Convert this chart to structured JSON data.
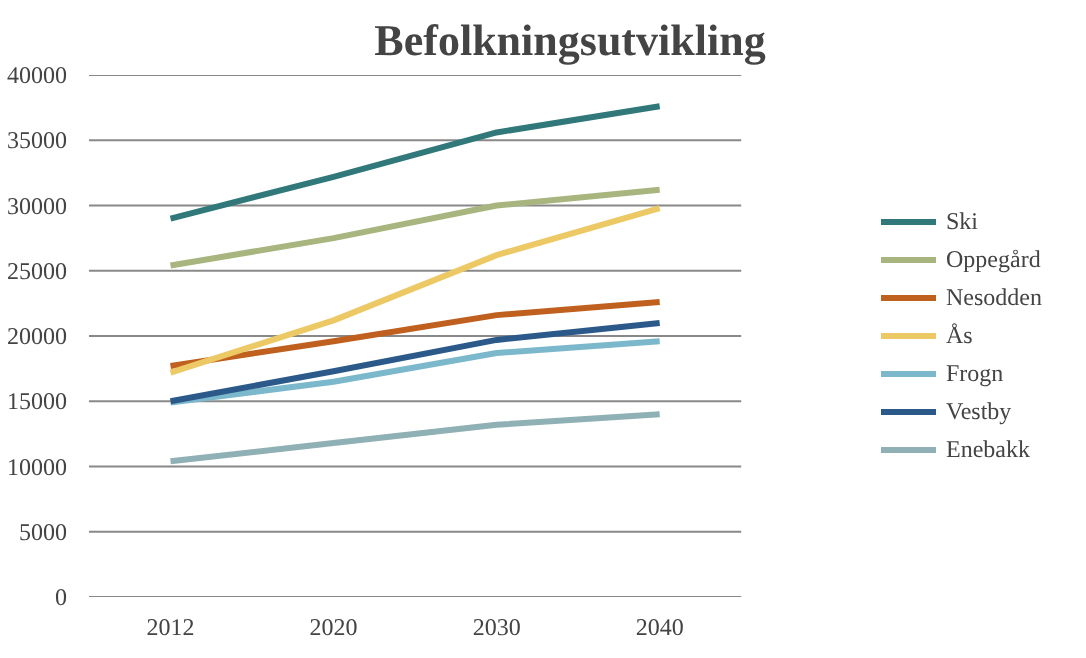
{
  "chart_data": {
    "type": "line",
    "title": "Befolkningsutvikling",
    "categories": [
      "2012",
      "2020",
      "2030",
      "2040"
    ],
    "ylim": [
      0,
      40000
    ],
    "yticks": [
      0,
      5000,
      10000,
      15000,
      20000,
      25000,
      30000,
      35000,
      40000
    ],
    "grid": "y",
    "legend": "right",
    "marker": "none",
    "series": [
      {
        "name": "Ski",
        "color": "#31787a",
        "values": [
          29000,
          32200,
          35600,
          37600
        ]
      },
      {
        "name": "Oppegård",
        "color": "#a8b57e",
        "values": [
          25400,
          27500,
          30000,
          31200
        ]
      },
      {
        "name": "Nesodden",
        "color": "#c0601e",
        "values": [
          17700,
          19600,
          21600,
          22600
        ]
      },
      {
        "name": "Ås",
        "color": "#ecc964",
        "values": [
          17200,
          21200,
          26200,
          29800
        ]
      },
      {
        "name": "Frogn",
        "color": "#7cb8cb",
        "values": [
          14900,
          16500,
          18700,
          19600
        ]
      },
      {
        "name": "Vestby",
        "color": "#2b5a8a",
        "values": [
          15000,
          17300,
          19700,
          21000
        ]
      },
      {
        "name": "Enebakk",
        "color": "#8fb0b4",
        "values": [
          10400,
          11800,
          13200,
          14000
        ]
      }
    ]
  }
}
